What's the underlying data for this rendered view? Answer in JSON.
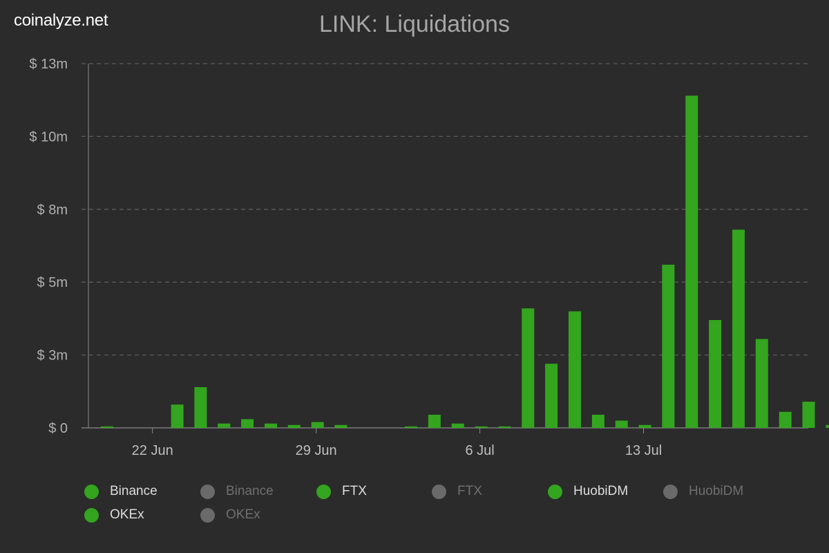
{
  "brand": "coinalyze.net",
  "colors": {
    "background": "#2b2b2b",
    "bar": "#33a51e",
    "grid": "#5c5c5c",
    "axis": "#8a8a8a",
    "legend_active_text": "#dddddd",
    "legend_inactive_text": "#6f6f6f",
    "legend_inactive_dot": "#6a6a6a"
  },
  "legend": {
    "items": [
      {
        "label": "Binance",
        "active": true
      },
      {
        "label": "Binance",
        "active": false
      },
      {
        "label": "FTX",
        "active": true
      },
      {
        "label": "FTX",
        "active": false
      },
      {
        "label": "HuobiDM",
        "active": true
      },
      {
        "label": "HuobiDM",
        "active": false
      },
      {
        "label": "OKEx",
        "active": true
      },
      {
        "label": "OKEx",
        "active": false
      }
    ]
  },
  "chart_data": {
    "type": "bar",
    "title": "LINK: Liquidations",
    "xlabel": "",
    "ylabel": "",
    "x_tick_labels": [
      "22 Jun",
      "29 Jun",
      "6 Jul",
      "13 Jul"
    ],
    "x_tick_category_index": [
      2,
      9,
      16,
      23
    ],
    "y_tick_labels": [
      "$ 0",
      "$ 3m",
      "$ 5m",
      "$ 8m",
      "$ 10m",
      "$ 13m"
    ],
    "y_tick_values": [
      0,
      2.5,
      5,
      7.5,
      10,
      12.5
    ],
    "ylim": [
      0,
      12.5
    ],
    "grid": true,
    "legend_position": "bottom",
    "unit": "million USD",
    "values": [
      0.05,
      0.0,
      0.0,
      0.8,
      1.4,
      0.15,
      0.3,
      0.15,
      0.1,
      0.2,
      0.1,
      0.0,
      0.0,
      0.05,
      0.45,
      0.15,
      0.05,
      0.05,
      4.1,
      2.2,
      4.0,
      0.45,
      0.25,
      0.1,
      5.6,
      11.4,
      3.7,
      6.8,
      3.05,
      0.55,
      0.9,
      0.1
    ]
  }
}
